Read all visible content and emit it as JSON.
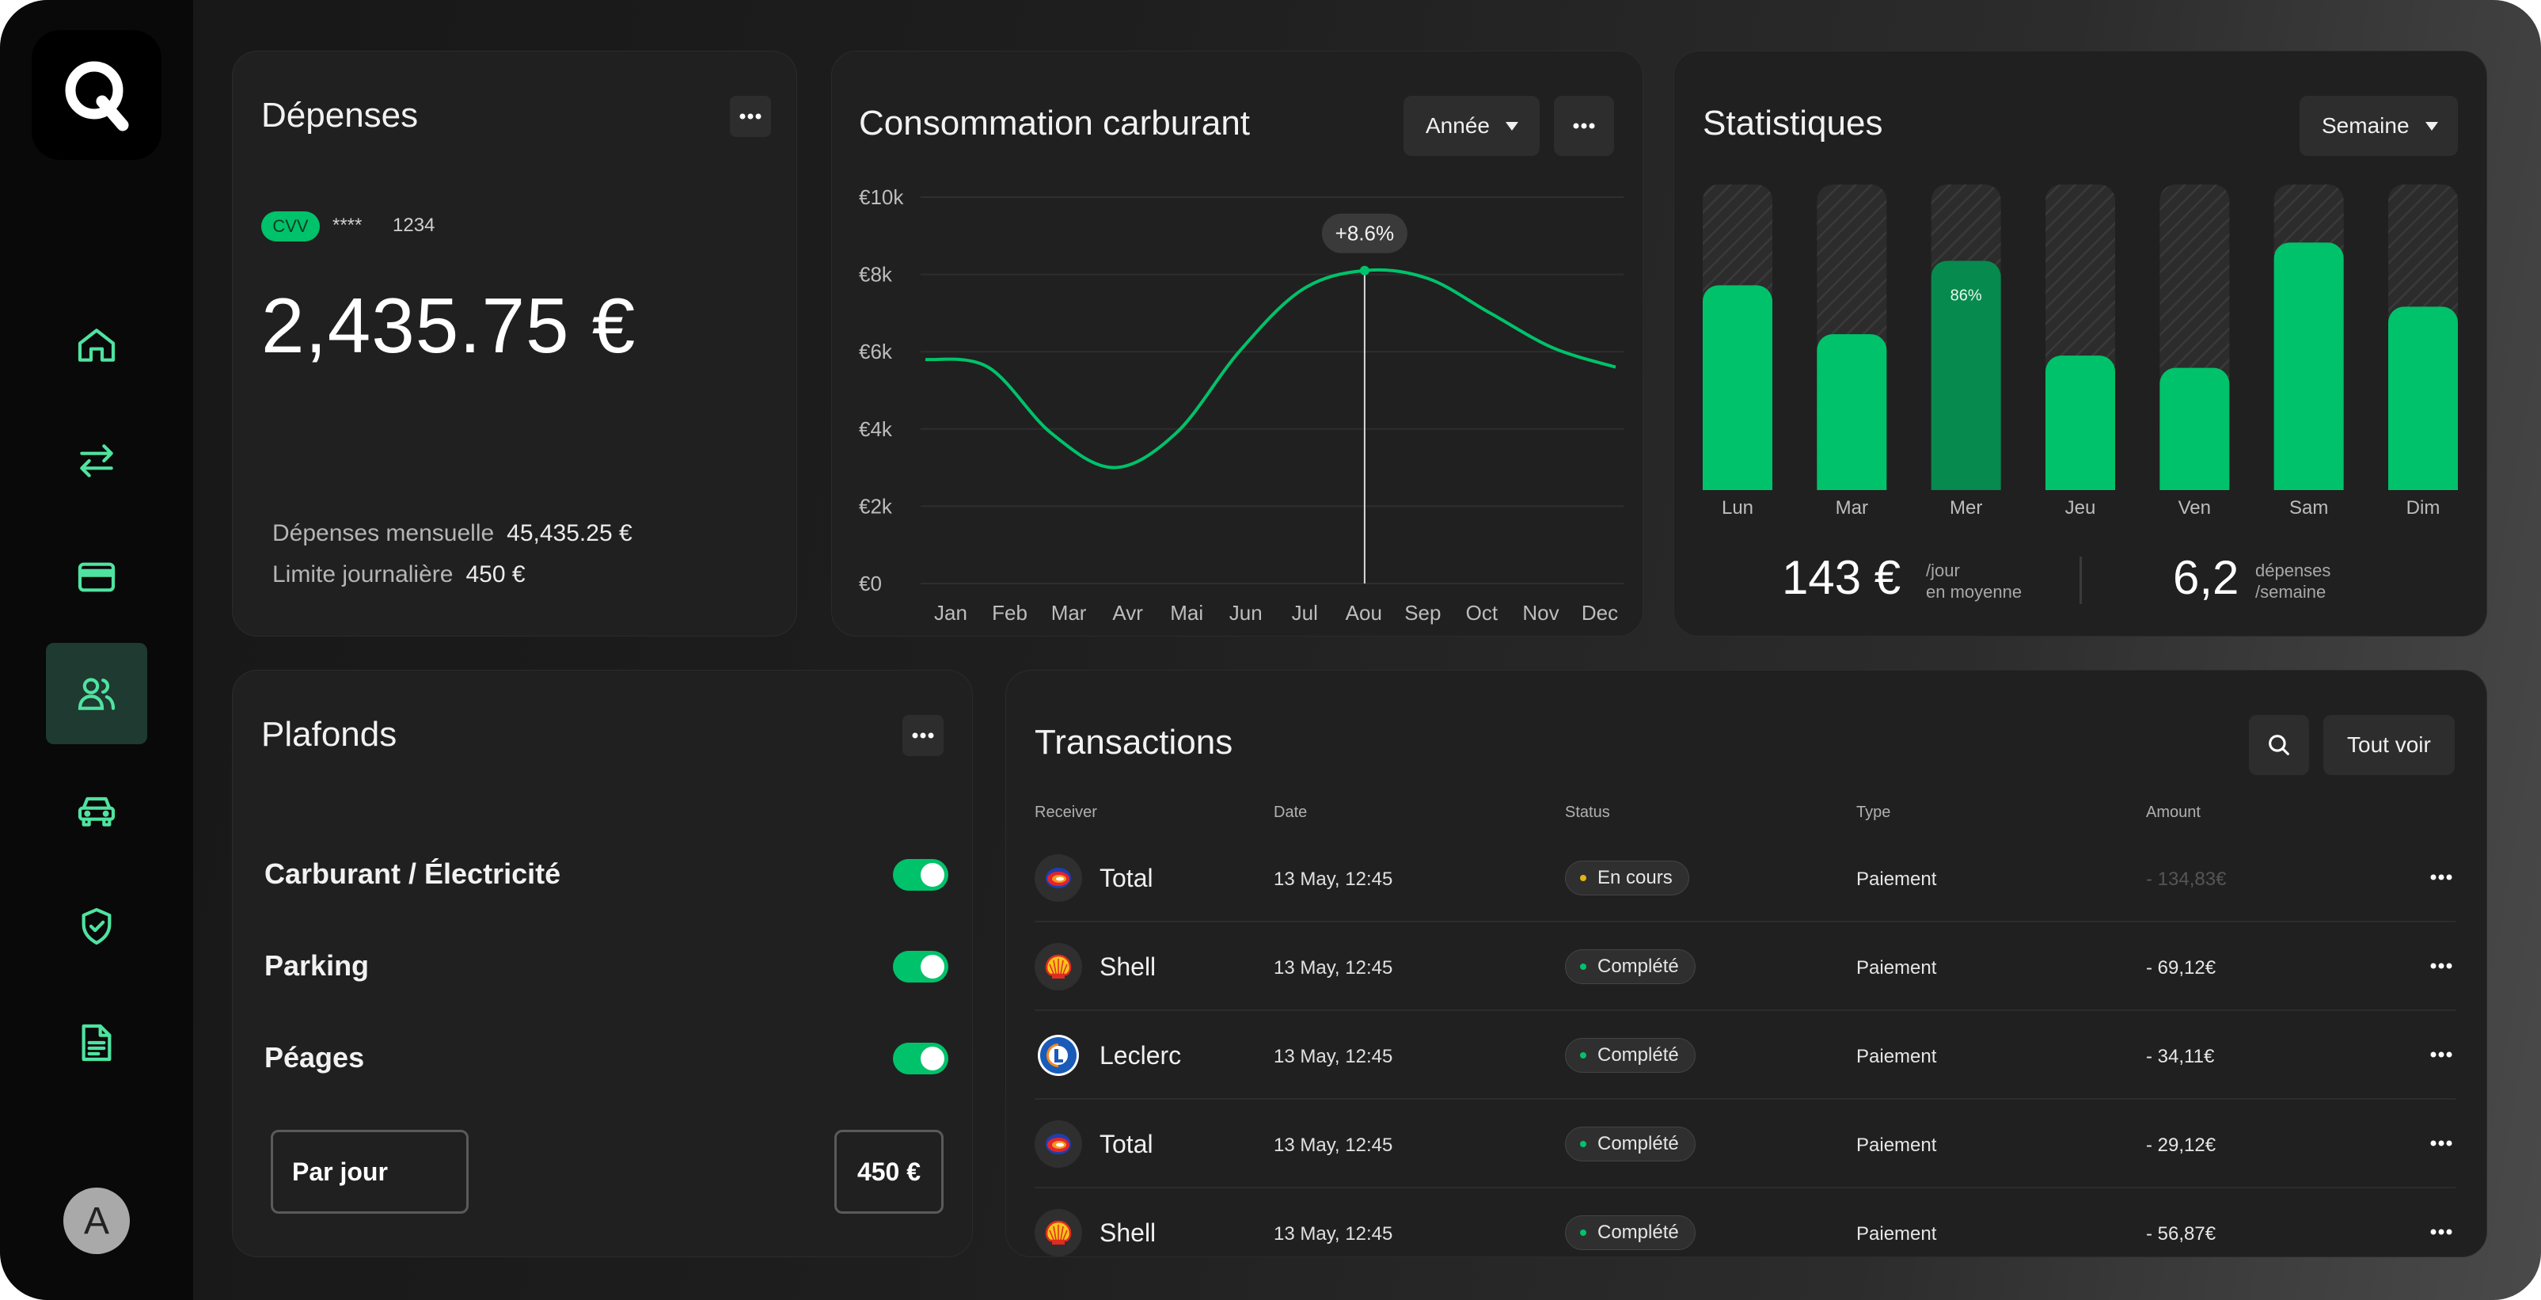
{
  "sidebar": {
    "items": [
      {
        "name": "home-icon"
      },
      {
        "name": "transfer-icon"
      },
      {
        "name": "card-icon"
      },
      {
        "name": "users-icon",
        "active": true
      },
      {
        "name": "car-icon"
      },
      {
        "name": "shield-check-icon"
      },
      {
        "name": "document-icon"
      }
    ],
    "avatar_initial": "A",
    "accent": "#4fe3a0"
  },
  "depenses": {
    "title": "Dépenses",
    "cvv_label": "CVV",
    "card_mask": "****",
    "card_last": "1234",
    "amount": "2,435.75 €",
    "monthly_label": "Dépenses mensuelle",
    "monthly_value": "45,435.25 €",
    "daily_label": "Limite journalière",
    "daily_value": "450 €"
  },
  "fuel": {
    "title": "Consommation carburant",
    "period": "Année",
    "tooltip": "+8.6%"
  },
  "chart_data": {
    "type": "line",
    "title": "Consommation carburant",
    "x": [
      "Jan",
      "Feb",
      "Mar",
      "Avr",
      "Mai",
      "Jun",
      "Jul",
      "Aou",
      "Sep",
      "Oct",
      "Nov",
      "Dec"
    ],
    "series": [
      {
        "values": [
          5.8,
          5.6,
          3.9,
          3.0,
          3.9,
          6.0,
          7.6,
          8.1,
          7.9,
          7.0,
          6.1,
          5.6
        ]
      }
    ],
    "yticks": [
      "€10k",
      "€8k",
      "€6k",
      "€4k",
      "€2k",
      "€0"
    ],
    "ylim": [
      0,
      10
    ],
    "highlight": {
      "x": "Aou",
      "label": "+8.6%"
    },
    "grid": true,
    "color": "#00c26a"
  },
  "stats": {
    "title": "Statistiques",
    "period": "Semaine",
    "days": [
      {
        "label": "Lun",
        "value": 0.67
      },
      {
        "label": "Mar",
        "value": 0.51
      },
      {
        "label": "Mer",
        "value": 0.75,
        "highlight": true,
        "pct": "86%"
      },
      {
        "label": "Jeu",
        "value": 0.44
      },
      {
        "label": "Ven",
        "value": 0.4
      },
      {
        "label": "Sam",
        "value": 0.81
      },
      {
        "label": "Dim",
        "value": 0.6
      }
    ],
    "avg_value": "143 €",
    "avg_line1": "/jour",
    "avg_line2": "en moyenne",
    "count_value": "6,2",
    "count_line1": "dépenses",
    "count_line2": "/semaine"
  },
  "plafonds": {
    "title": "Plafonds",
    "limits": [
      {
        "label": "Carburant / Électricité",
        "on": true
      },
      {
        "label": "Parking",
        "on": true
      },
      {
        "label": "Péages",
        "on": true
      }
    ],
    "period": "Par jour",
    "amount": "450 €"
  },
  "transactions": {
    "title": "Transactions",
    "see_all": "Tout voir",
    "headers": [
      "Receiver",
      "Date",
      "Status",
      "Type",
      "Amount"
    ],
    "rows": [
      {
        "logo": "total",
        "receiver": "Total",
        "date": "13 May, 12:45",
        "status": "En cours",
        "status_color": "#e2b514",
        "type": "Paiement",
        "amount": "- 134,83€",
        "muted": true
      },
      {
        "logo": "shell",
        "receiver": "Shell",
        "date": "13 May, 12:45",
        "status": "Complété",
        "status_color": "#00c26a",
        "type": "Paiement",
        "amount": "- 69,12€"
      },
      {
        "logo": "leclerc",
        "receiver": "Leclerc",
        "date": "13 May, 12:45",
        "status": "Complété",
        "status_color": "#00c26a",
        "type": "Paiement",
        "amount": "- 34,11€"
      },
      {
        "logo": "total",
        "receiver": "Total",
        "date": "13 May, 12:45",
        "status": "Complété",
        "status_color": "#00c26a",
        "type": "Paiement",
        "amount": "- 29,12€"
      },
      {
        "logo": "shell",
        "receiver": "Shell",
        "date": "13 May, 12:45",
        "status": "Complété",
        "status_color": "#00c26a",
        "type": "Paiement",
        "amount": "- 56,87€"
      }
    ]
  }
}
